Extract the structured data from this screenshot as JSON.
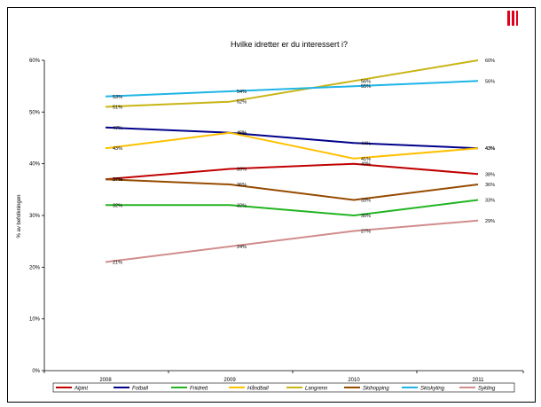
{
  "chart_data": {
    "type": "line",
    "title": "Hvilke idretter er du interessert i?",
    "ylabel": "% av befolkningen",
    "xlabel": "",
    "x": [
      "2008",
      "2009",
      "2010",
      "2011"
    ],
    "ylim": [
      0,
      60
    ],
    "yticks": [
      "0%",
      "10%",
      "20%",
      "30%",
      "40%",
      "50%",
      "60%"
    ],
    "grid": false,
    "legend_position": "bottom",
    "series": [
      {
        "name": "Alpint",
        "color": "#c00000",
        "values": [
          37,
          39,
          40,
          38
        ],
        "labels": [
          "37%",
          "39%",
          "40%",
          "38%"
        ]
      },
      {
        "name": "Fotball",
        "color": "#00008b",
        "values": [
          47,
          46,
          44,
          43
        ],
        "labels": [
          "47%",
          "46%",
          "44%",
          "43%"
        ]
      },
      {
        "name": "Friidrett",
        "color": "#22b422",
        "values": [
          32,
          32,
          30,
          33
        ],
        "labels": [
          "32%",
          "32%",
          "30%",
          "33%"
        ]
      },
      {
        "name": "Håndball",
        "color": "#ffc000",
        "values": [
          43,
          46,
          41,
          43
        ],
        "labels": [
          "43%",
          "46%",
          "41%",
          "43%"
        ]
      },
      {
        "name": "Langrenn",
        "color": "#c8b414",
        "values": [
          51,
          52,
          56,
          60
        ],
        "labels": [
          "51%",
          "52%",
          "56%",
          "60%"
        ]
      },
      {
        "name": "Skihopping",
        "color": "#964b00",
        "values": [
          37,
          36,
          33,
          36
        ],
        "labels": [
          "37%",
          "36%",
          "33%",
          "36%"
        ]
      },
      {
        "name": "Skiskyting",
        "color": "#1eb4e6",
        "values": [
          53,
          54,
          55,
          56
        ],
        "labels": [
          "53%",
          "54%",
          "55%",
          "56%"
        ]
      },
      {
        "name": "Sykling",
        "color": "#d28c8c",
        "values": [
          21,
          24,
          27,
          29
        ],
        "labels": [
          "21%",
          "24%",
          "27%",
          "29%"
        ]
      }
    ]
  },
  "logo": {
    "name": "brand-logo",
    "color": "#e0001b"
  }
}
